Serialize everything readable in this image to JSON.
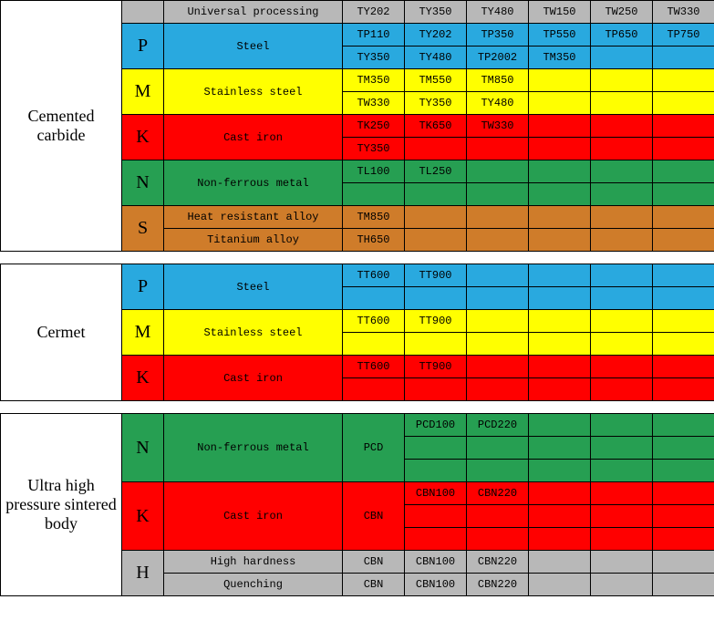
{
  "colors": {
    "gray": "#b8b8b8",
    "blue": "#29a9df",
    "yellow": "#ffff00",
    "red": "#ff0000",
    "green": "#269f52",
    "orange": "#cf7c2a",
    "white": "#ffffff"
  },
  "col_widths": [
    "133",
    "46",
    "196",
    "68",
    "68",
    "68",
    "68",
    "68",
    "68"
  ],
  "sections": [
    {
      "label": "Cemented carbide",
      "header_row": {
        "color": "gray",
        "material": "Universal processing",
        "cells": [
          "TY202",
          "TY350",
          "TY480",
          "TW150",
          "TW250",
          "TW330"
        ]
      },
      "groups": [
        {
          "code": "P",
          "color": "blue",
          "material": "Steel",
          "rows": [
            [
              "TP110",
              "TY202",
              "TP350",
              "TP550",
              "TP650",
              "TP750"
            ],
            [
              "TY350",
              "TY480",
              "TP2002",
              "TM350",
              "",
              ""
            ]
          ]
        },
        {
          "code": "M",
          "color": "yellow",
          "material": "Stainless steel",
          "rows": [
            [
              "TM350",
              "TM550",
              "TM850",
              "",
              "",
              ""
            ],
            [
              "TW330",
              "TY350",
              "TY480",
              "",
              "",
              ""
            ]
          ]
        },
        {
          "code": "K",
          "color": "red",
          "material": "Cast iron",
          "rows": [
            [
              "TK250",
              "TK650",
              "TW330",
              "",
              "",
              ""
            ],
            [
              "TY350",
              "",
              "",
              "",
              "",
              ""
            ]
          ]
        },
        {
          "code": "N",
          "color": "green",
          "material": "Non-ferrous metal",
          "rows": [
            [
              "TL100",
              "TL250",
              "",
              "",
              "",
              ""
            ],
            [
              "",
              "",
              "",
              "",
              "",
              ""
            ]
          ]
        },
        {
          "code": "S",
          "color": "orange",
          "materials": [
            "Heat resistant alloy",
            "Titanium alloy"
          ],
          "rows": [
            [
              "TM850",
              "",
              "",
              "",
              "",
              ""
            ],
            [
              "TH650",
              "",
              "",
              "",
              "",
              ""
            ]
          ]
        }
      ]
    },
    {
      "label": "Cermet",
      "groups": [
        {
          "code": "P",
          "color": "blue",
          "material": "Steel",
          "rows": [
            [
              "TT600",
              "TT900",
              "",
              "",
              "",
              ""
            ],
            [
              "",
              "",
              "",
              "",
              "",
              ""
            ]
          ]
        },
        {
          "code": "M",
          "color": "yellow",
          "material": "Stainless steel",
          "rows": [
            [
              "TT600",
              "TT900",
              "",
              "",
              "",
              ""
            ],
            [
              "",
              "",
              "",
              "",
              "",
              ""
            ]
          ]
        },
        {
          "code": "K",
          "color": "red",
          "material": "Cast iron",
          "rows": [
            [
              "TT600",
              "TT900",
              "",
              "",
              "",
              ""
            ],
            [
              "",
              "",
              "",
              "",
              "",
              ""
            ]
          ]
        }
      ]
    },
    {
      "label": "Ultra high pressure sintered body",
      "groups": [
        {
          "code": "N",
          "color": "green",
          "material": "Non-ferrous metal",
          "lead": "PCD",
          "lead_rows": 3,
          "rows": [
            [
              "PCD100",
              "PCD220",
              "",
              "",
              ""
            ],
            [
              "",
              "",
              "",
              "",
              ""
            ],
            [
              "",
              "",
              "",
              "",
              ""
            ]
          ]
        },
        {
          "code": "K",
          "color": "red",
          "material": "Cast iron",
          "lead": "CBN",
          "lead_rows": 3,
          "rows": [
            [
              "CBN100",
              "CBN220",
              "",
              "",
              ""
            ],
            [
              "",
              "",
              "",
              "",
              ""
            ],
            [
              "",
              "",
              "",
              "",
              ""
            ]
          ]
        },
        {
          "code": "H",
          "color": "gray",
          "materials": [
            "High hardness",
            "Quenching"
          ],
          "leads": [
            "CBN",
            "CBN"
          ],
          "rows": [
            [
              "CBN100",
              "CBN220",
              "",
              "",
              ""
            ],
            [
              "CBN100",
              "CBN220",
              "",
              "",
              ""
            ]
          ]
        }
      ]
    }
  ]
}
